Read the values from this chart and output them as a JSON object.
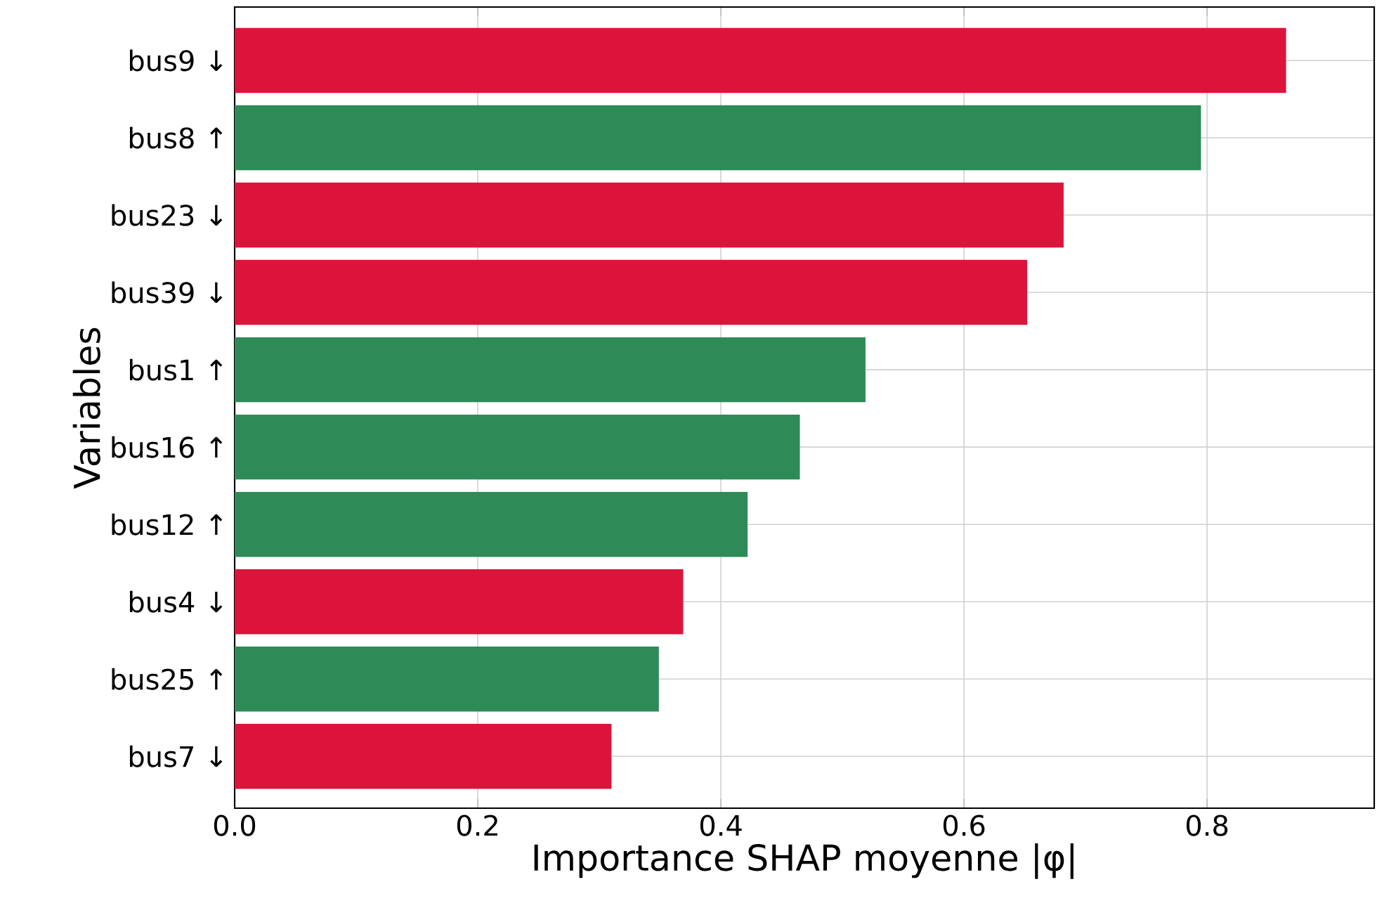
{
  "chart_data": {
    "type": "bar",
    "orientation": "horizontal",
    "xlabel": "Importance SHAP moyenne |φ|",
    "ylabel": "Variables",
    "categories": [
      "bus9 ↓",
      "bus8 ↑",
      "bus23 ↓",
      "bus39 ↓",
      "bus1 ↑",
      "bus16 ↑",
      "bus12 ↑",
      "bus4 ↓",
      "bus25 ↑",
      "bus7 ↓"
    ],
    "values": [
      0.865,
      0.795,
      0.682,
      0.652,
      0.519,
      0.465,
      0.422,
      0.369,
      0.349,
      0.31
    ],
    "colors": [
      "#dc143c",
      "#2e8b57",
      "#dc143c",
      "#dc143c",
      "#2e8b57",
      "#2e8b57",
      "#2e8b57",
      "#dc143c",
      "#2e8b57",
      "#dc143c"
    ],
    "xlim": [
      0,
      0.9375
    ],
    "xticks": [
      {
        "value": 0,
        "label": "0.0"
      },
      {
        "value": 0.2,
        "label": "0.2"
      },
      {
        "value": 0.4,
        "label": "0.4"
      },
      {
        "value": 0.6,
        "label": "0.6"
      },
      {
        "value": 0.8,
        "label": "0.8"
      }
    ],
    "grid": true
  }
}
